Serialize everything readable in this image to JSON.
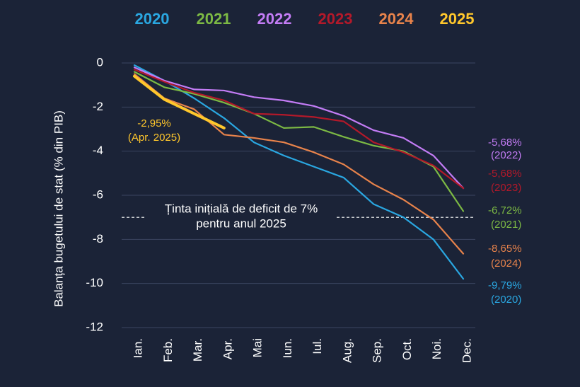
{
  "chart_data": {
    "type": "line",
    "ylabel": "Balanța bugetului de stat (% din PIB)",
    "categories": [
      "Ian.",
      "Feb.",
      "Mar.",
      "Apr.",
      "Mai",
      "Iun.",
      "Iul.",
      "Aug.",
      "Sep.",
      "Oct.",
      "Noi.",
      "Dec."
    ],
    "ylim": [
      -12,
      0
    ],
    "yticks": [
      0,
      -2,
      -4,
      -6,
      -8,
      -10,
      -12
    ],
    "grid": true,
    "legend": "top",
    "series": [
      {
        "name": "2020",
        "color": "#2aa7e1",
        "values": [
          -0.1,
          -0.8,
          -1.6,
          -2.5,
          -3.6,
          -4.2,
          -4.7,
          -5.2,
          -6.4,
          -7.0,
          -8.0,
          -9.79
        ],
        "value_labels": [
          null,
          null,
          null,
          null,
          null,
          null,
          null,
          null,
          null,
          null,
          null,
          "-9,79%"
        ],
        "note": "(2020)"
      },
      {
        "name": "2021",
        "color": "#7cb944",
        "values": [
          -0.4,
          -1.1,
          -1.4,
          -1.8,
          -2.3,
          -2.95,
          -2.9,
          -3.35,
          -3.75,
          -4.0,
          -4.7,
          -6.72
        ],
        "value_labels": [
          null,
          null,
          null,
          null,
          null,
          null,
          null,
          null,
          null,
          null,
          null,
          "-6,72%"
        ],
        "note": "(2021)"
      },
      {
        "name": "2022",
        "color": "#c37cf5",
        "values": [
          -0.2,
          -0.8,
          -1.2,
          -1.25,
          -1.55,
          -1.7,
          -1.95,
          -2.4,
          -3.05,
          -3.4,
          -4.2,
          -5.68
        ],
        "value_labels": [
          null,
          null,
          null,
          null,
          null,
          null,
          null,
          null,
          null,
          null,
          null,
          "-5,68%"
        ],
        "note": "(2022)"
      },
      {
        "name": "2023",
        "color": "#b3192a",
        "values": [
          -0.3,
          -0.85,
          -1.35,
          -1.7,
          -2.3,
          -2.35,
          -2.45,
          -2.65,
          -3.6,
          -4.05,
          -4.65,
          -5.68
        ],
        "value_labels": [
          null,
          null,
          null,
          null,
          null,
          null,
          null,
          null,
          null,
          null,
          null,
          "-5,68%"
        ],
        "note": "(2023)"
      },
      {
        "name": "2024",
        "color": "#e8834b",
        "values": [
          -0.5,
          -1.6,
          -2.1,
          -3.25,
          -3.4,
          -3.6,
          -4.05,
          -4.6,
          -5.5,
          -6.2,
          -7.1,
          -8.65
        ],
        "value_labels": [
          null,
          null,
          null,
          null,
          null,
          null,
          null,
          null,
          null,
          null,
          null,
          "-8,65%"
        ],
        "note": "(2024)"
      },
      {
        "name": "2025",
        "color": "#ffc72c",
        "values": [
          -0.6,
          -1.65,
          -2.3,
          -2.95,
          null,
          null,
          null,
          null,
          null,
          null,
          null,
          null
        ],
        "value_labels": [
          null,
          null,
          null,
          "-2,95%",
          null,
          null,
          null,
          null,
          null,
          null,
          null,
          null
        ],
        "note": "(Apr. 2025)"
      }
    ],
    "target": {
      "value": -7,
      "lines": [
        "Ținta inițială de deficit de 7%",
        "pentru anul 2025"
      ]
    }
  }
}
